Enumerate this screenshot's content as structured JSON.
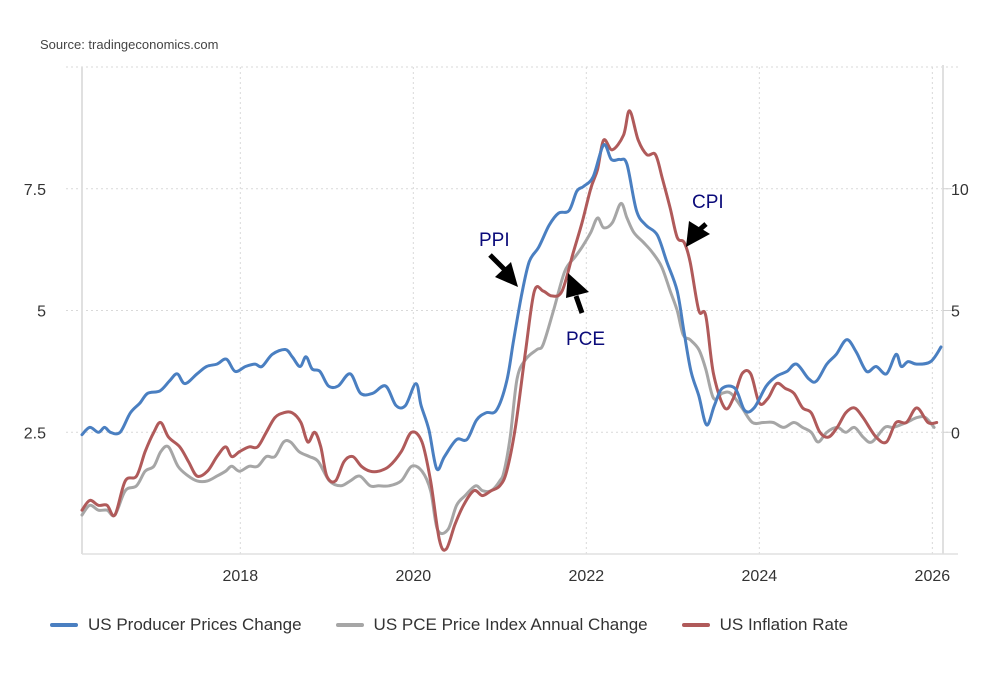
{
  "source": "Source: tradingeconomics.com",
  "chart_data": {
    "type": "line",
    "title": "",
    "xlabel": "",
    "ylabel": "",
    "x_range": [
      2016.17,
      2026.1
    ],
    "x_ticks": [
      2018,
      2020,
      2022,
      2024,
      2026
    ],
    "x_tick_labels": [
      "2018",
      "2020",
      "2022",
      "2024",
      "2026"
    ],
    "y_left": {
      "range": [
        0,
        10
      ],
      "ticks": [
        2.5,
        5,
        7.5
      ],
      "tick_labels": [
        "2.5",
        "5",
        "7.5"
      ]
    },
    "y_right": {
      "range": [
        -5,
        15
      ],
      "ticks": [
        0,
        5,
        10
      ],
      "tick_labels": [
        "0",
        "5",
        "10"
      ]
    },
    "grid": true,
    "legend_position": "bottom",
    "series": [
      {
        "name": "US Producer Prices Change",
        "color": "#4a7fc1",
        "axis": "right",
        "x": [
          2016.17,
          2016.26,
          2016.36,
          2016.43,
          2016.5,
          2016.61,
          2016.73,
          2016.84,
          2016.93,
          2017.07,
          2017.18,
          2017.27,
          2017.36,
          2017.5,
          2017.61,
          2017.73,
          2017.84,
          2017.94,
          2018.06,
          2018.17,
          2018.25,
          2018.37,
          2018.52,
          2018.6,
          2018.69,
          2018.76,
          2018.83,
          2018.92,
          2019.02,
          2019.13,
          2019.27,
          2019.39,
          2019.53,
          2019.68,
          2019.8,
          2019.91,
          2020.03,
          2020.09,
          2020.18,
          2020.27,
          2020.36,
          2020.5,
          2020.62,
          2020.73,
          2020.84,
          2020.96,
          2021.08,
          2021.16,
          2021.25,
          2021.34,
          2021.45,
          2021.57,
          2021.68,
          2021.8,
          2021.89,
          2021.97,
          2022.08,
          2022.2,
          2022.29,
          2022.39,
          2022.47,
          2022.58,
          2022.69,
          2022.82,
          2022.93,
          2023.05,
          2023.13,
          2023.21,
          2023.3,
          2023.39,
          2023.48,
          2023.57,
          2023.72,
          2023.83,
          2023.94,
          2024.08,
          2024.2,
          2024.32,
          2024.43,
          2024.57,
          2024.66,
          2024.78,
          2024.89,
          2025.01,
          2025.12,
          2025.24,
          2025.35,
          2025.47,
          2025.58,
          2025.64,
          2025.72,
          2025.82,
          2025.98,
          2026.1
        ],
        "values": [
          -0.1,
          0.2,
          0.0,
          0.2,
          0.0,
          0.0,
          0.8,
          1.2,
          1.6,
          1.7,
          2.1,
          2.4,
          2.0,
          2.4,
          2.7,
          2.8,
          3.0,
          2.5,
          2.7,
          2.8,
          2.7,
          3.2,
          3.4,
          3.1,
          2.7,
          3.1,
          2.6,
          2.5,
          1.9,
          1.9,
          2.4,
          1.6,
          1.6,
          1.9,
          1.1,
          1.1,
          2.0,
          1.1,
          0.1,
          -1.5,
          -1.0,
          -0.3,
          -0.3,
          0.5,
          0.8,
          0.9,
          2.1,
          3.8,
          5.6,
          7.0,
          7.6,
          8.5,
          9.0,
          9.1,
          9.9,
          10.1,
          10.5,
          11.8,
          11.2,
          11.2,
          11.0,
          9.1,
          8.5,
          8.1,
          7.0,
          5.8,
          4.1,
          2.5,
          1.5,
          0.3,
          1.1,
          1.8,
          1.8,
          0.9,
          1.0,
          1.9,
          2.3,
          2.5,
          2.8,
          2.2,
          2.1,
          2.8,
          3.2,
          3.8,
          3.3,
          2.5,
          2.7,
          2.4,
          3.2,
          2.7,
          2.9,
          2.8,
          2.9,
          3.5
        ]
      },
      {
        "name": "US PCE Price Index Annual Change",
        "color": "#a6a6a6",
        "axis": "left",
        "x": [
          2016.17,
          2016.26,
          2016.36,
          2016.46,
          2016.55,
          2016.67,
          2016.8,
          2016.9,
          2017.0,
          2017.08,
          2017.17,
          2017.28,
          2017.4,
          2017.5,
          2017.62,
          2017.73,
          2017.83,
          2017.9,
          2017.99,
          2018.1,
          2018.2,
          2018.3,
          2018.4,
          2018.5,
          2018.58,
          2018.68,
          2018.8,
          2018.9,
          2019.03,
          2019.16,
          2019.27,
          2019.38,
          2019.5,
          2019.6,
          2019.72,
          2019.86,
          2019.98,
          2020.1,
          2020.2,
          2020.28,
          2020.4,
          2020.5,
          2020.6,
          2020.72,
          2020.8,
          2020.9,
          2021.0,
          2021.05,
          2021.12,
          2021.2,
          2021.3,
          2021.43,
          2021.5,
          2021.62,
          2021.75,
          2021.87,
          2021.95,
          2022.05,
          2022.13,
          2022.2,
          2022.3,
          2022.4,
          2022.47,
          2022.55,
          2022.66,
          2022.76,
          2022.87,
          2022.97,
          2023.05,
          2023.12,
          2023.2,
          2023.3,
          2023.38,
          2023.47,
          2023.57,
          2023.67,
          2023.8,
          2023.92,
          2024.05,
          2024.16,
          2024.28,
          2024.4,
          2024.5,
          2024.6,
          2024.68,
          2024.78,
          2024.9,
          2025.0,
          2025.1,
          2025.2,
          2025.3,
          2025.45,
          2025.55,
          2025.7,
          2025.82,
          2025.92,
          2026.02
        ],
        "values": [
          0.8,
          1.0,
          0.9,
          0.9,
          0.8,
          1.3,
          1.4,
          1.7,
          1.8,
          2.1,
          2.2,
          1.8,
          1.6,
          1.5,
          1.5,
          1.6,
          1.7,
          1.8,
          1.7,
          1.8,
          1.8,
          2.0,
          2.0,
          2.3,
          2.3,
          2.1,
          2.0,
          1.9,
          1.5,
          1.4,
          1.5,
          1.6,
          1.4,
          1.4,
          1.4,
          1.5,
          1.8,
          1.7,
          1.3,
          0.5,
          0.5,
          1.0,
          1.2,
          1.4,
          1.3,
          1.3,
          1.5,
          1.7,
          2.4,
          3.6,
          4.0,
          4.2,
          4.3,
          5.0,
          5.8,
          6.1,
          6.3,
          6.6,
          6.9,
          6.7,
          6.8,
          7.2,
          6.9,
          6.6,
          6.4,
          6.2,
          5.9,
          5.4,
          5.0,
          4.5,
          4.4,
          4.2,
          3.8,
          3.2,
          3.3,
          3.3,
          3.0,
          2.7,
          2.7,
          2.7,
          2.6,
          2.7,
          2.6,
          2.5,
          2.3,
          2.5,
          2.6,
          2.5,
          2.6,
          2.4,
          2.3,
          2.6,
          2.6,
          2.7,
          2.8,
          2.8,
          2.6
        ]
      },
      {
        "name": "US Inflation Rate",
        "color": "#b05a5a",
        "axis": "left",
        "x": [
          2016.17,
          2016.26,
          2016.36,
          2016.46,
          2016.55,
          2016.67,
          2016.8,
          2016.9,
          2017.0,
          2017.08,
          2017.17,
          2017.3,
          2017.4,
          2017.5,
          2017.62,
          2017.73,
          2017.83,
          2017.9,
          2017.99,
          2018.1,
          2018.2,
          2018.3,
          2018.4,
          2018.5,
          2018.6,
          2018.7,
          2018.78,
          2018.86,
          2018.93,
          2019.0,
          2019.1,
          2019.2,
          2019.3,
          2019.4,
          2019.5,
          2019.6,
          2019.72,
          2019.86,
          2019.98,
          2020.1,
          2020.2,
          2020.3,
          2020.38,
          2020.48,
          2020.58,
          2020.7,
          2020.8,
          2020.9,
          2021.0,
          2021.08,
          2021.18,
          2021.3,
          2021.4,
          2021.5,
          2021.6,
          2021.72,
          2021.85,
          2021.95,
          2022.05,
          2022.13,
          2022.2,
          2022.3,
          2022.43,
          2022.5,
          2022.6,
          2022.7,
          2022.8,
          2022.88,
          2022.97,
          2023.05,
          2023.13,
          2023.2,
          2023.3,
          2023.38,
          2023.47,
          2023.6,
          2023.7,
          2023.8,
          2023.9,
          2024.0,
          2024.1,
          2024.2,
          2024.3,
          2024.4,
          2024.5,
          2024.6,
          2024.7,
          2024.8,
          2024.9,
          2025.0,
          2025.1,
          2025.2,
          2025.35,
          2025.47,
          2025.58,
          2025.7,
          2025.82,
          2025.95,
          2026.05
        ],
        "values": [
          0.9,
          1.1,
          1.0,
          1.0,
          0.8,
          1.5,
          1.6,
          2.1,
          2.5,
          2.7,
          2.4,
          2.2,
          1.9,
          1.6,
          1.7,
          2.0,
          2.2,
          2.0,
          2.1,
          2.2,
          2.2,
          2.5,
          2.8,
          2.9,
          2.9,
          2.7,
          2.3,
          2.5,
          2.2,
          1.6,
          1.5,
          1.9,
          2.0,
          1.8,
          1.7,
          1.7,
          1.8,
          2.1,
          2.5,
          2.3,
          1.5,
          0.3,
          0.1,
          0.6,
          1.0,
          1.3,
          1.2,
          1.3,
          1.4,
          1.7,
          2.6,
          4.2,
          5.4,
          5.4,
          5.3,
          5.4,
          6.2,
          6.8,
          7.5,
          7.9,
          8.5,
          8.3,
          8.6,
          9.1,
          8.5,
          8.2,
          8.2,
          7.7,
          7.1,
          6.5,
          6.4,
          6.0,
          5.0,
          4.9,
          3.7,
          3.0,
          3.2,
          3.7,
          3.7,
          3.1,
          3.2,
          3.5,
          3.4,
          3.3,
          3.0,
          2.9,
          2.5,
          2.4,
          2.6,
          2.9,
          3.0,
          2.8,
          2.4,
          2.3,
          2.7,
          2.7,
          3.0,
          2.7,
          2.7
        ]
      }
    ],
    "annotations": [
      {
        "label": "PPI",
        "target_series": "US Producer Prices Change"
      },
      {
        "label": "PCE",
        "target_series": "US PCE Price Index Annual Change"
      },
      {
        "label": "CPI",
        "target_series": "US Inflation Rate"
      }
    ]
  },
  "legend": [
    {
      "label": "US Producer Prices Change",
      "color": "#4a7fc1"
    },
    {
      "label": "US PCE Price Index Annual Change",
      "color": "#a6a6a6"
    },
    {
      "label": "US Inflation Rate",
      "color": "#b05a5a"
    }
  ]
}
